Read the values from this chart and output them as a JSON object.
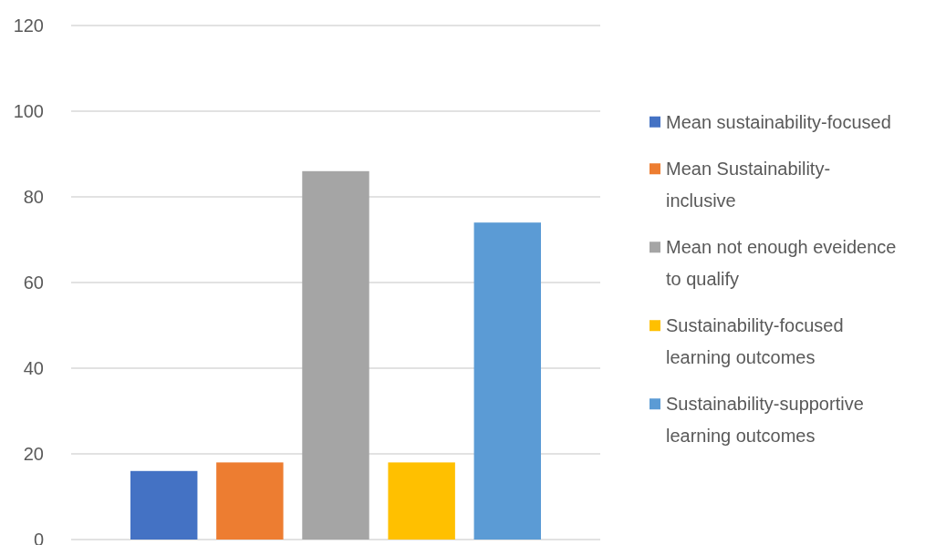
{
  "chart_data": {
    "type": "bar",
    "categories": [
      null
    ],
    "series": [
      {
        "name": "Mean sustainability-focused",
        "color": "#4472c4",
        "values": [
          16
        ]
      },
      {
        "name": "Mean Sustainability-inclusive",
        "color": "#ed7d31",
        "values": [
          18
        ]
      },
      {
        "name": "Mean not enough eveidence to qualify",
        "color": "#a5a5a5",
        "values": [
          86
        ]
      },
      {
        "name": "Sustainability-focused learning outcomes",
        "color": "#ffc000",
        "values": [
          18
        ]
      },
      {
        "name": "Sustainability-supportive learning outcomes",
        "color": "#5b9bd5",
        "values": [
          74
        ]
      }
    ],
    "ylim": [
      0,
      120
    ],
    "yticks": [
      0,
      20,
      40,
      60,
      80,
      100,
      120
    ],
    "grid": "y",
    "legend": "right"
  }
}
